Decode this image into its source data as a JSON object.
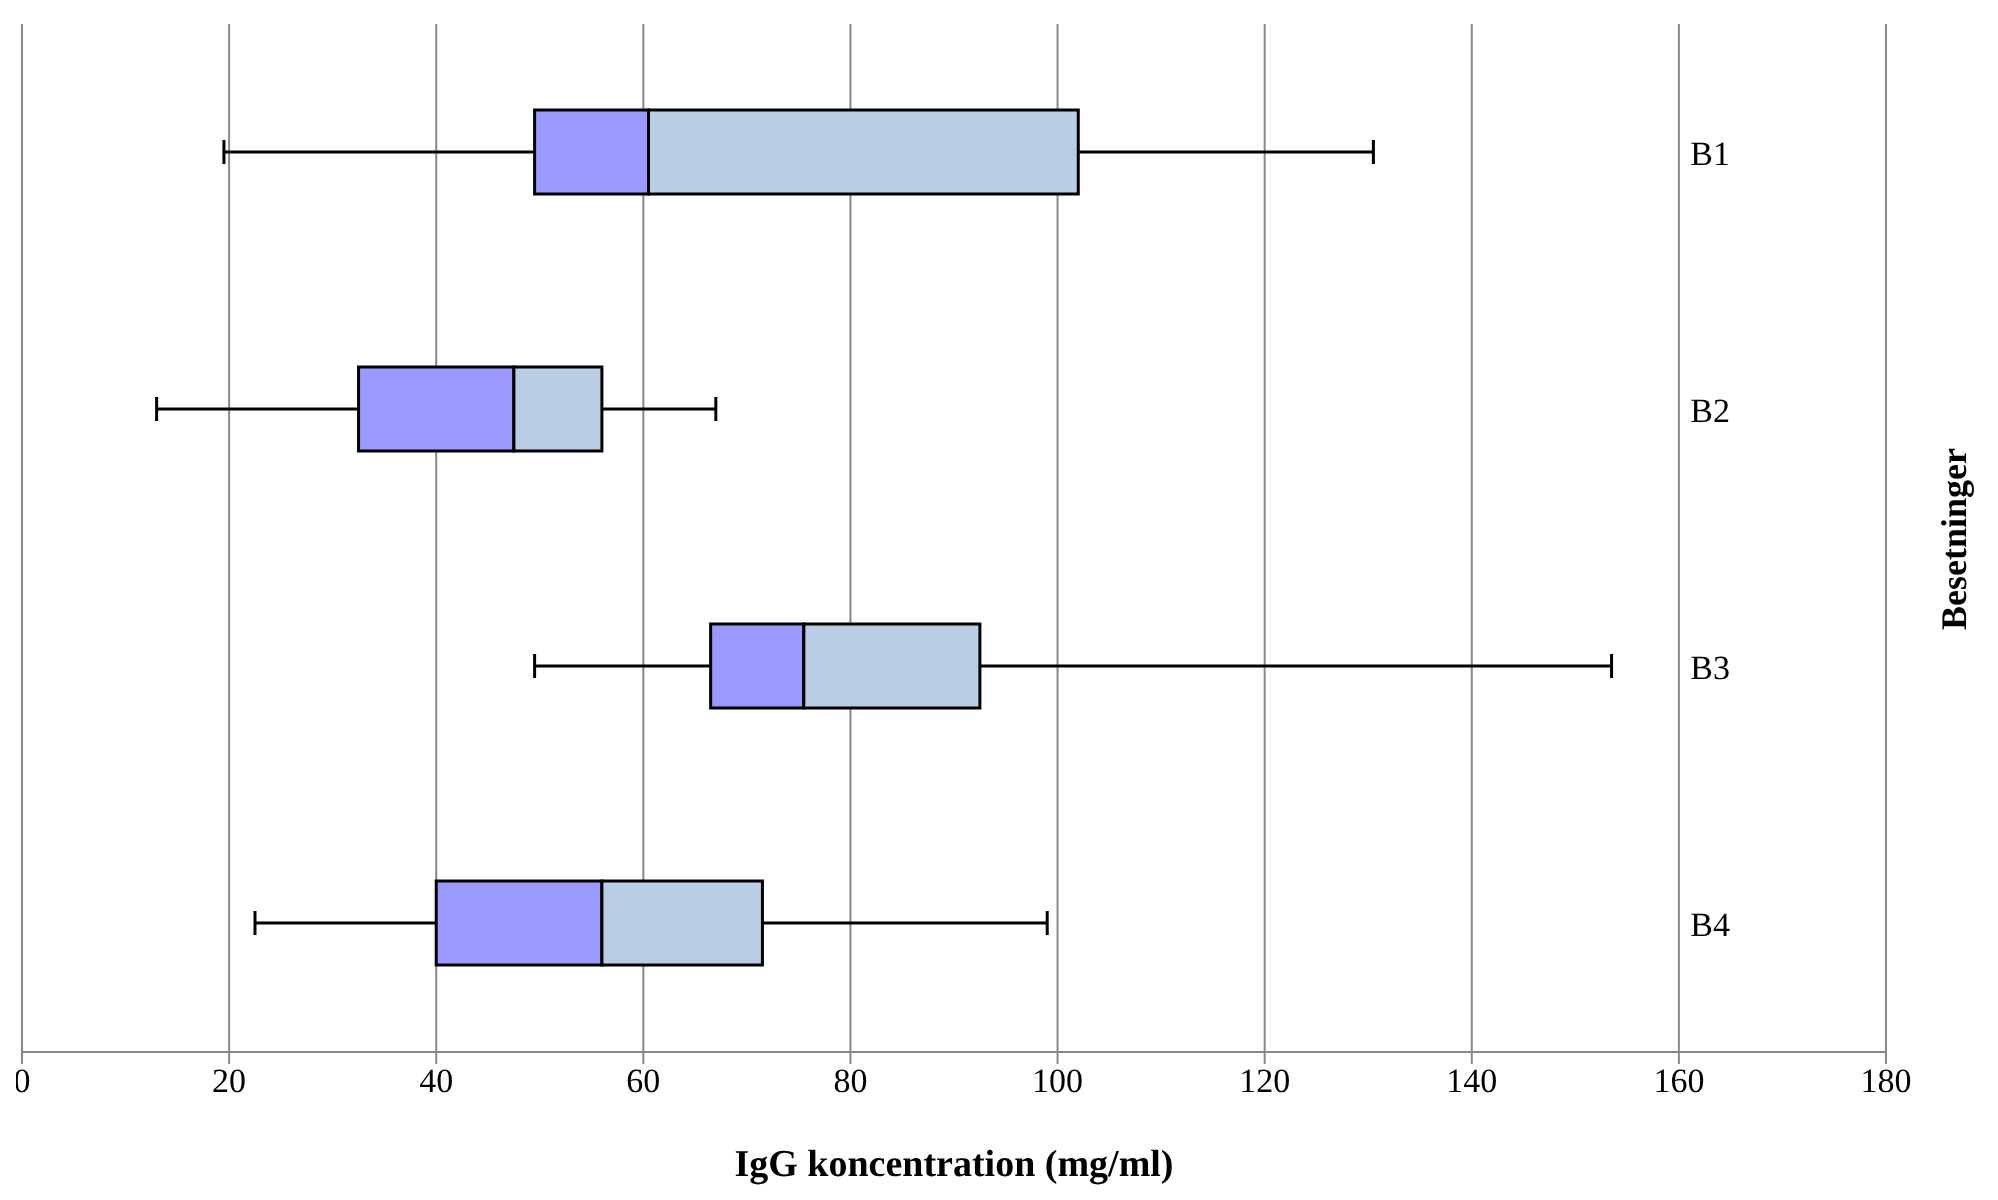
{
  "chart_data": {
    "type": "box",
    "orientation": "horizontal",
    "xlabel": "IgG koncentration (mg/ml)",
    "ylabel": "Besetninger",
    "categories": [
      "B1",
      "B2",
      "B3",
      "B4"
    ],
    "series": [
      {
        "color": "#b9cde5",
        "colors": [
          "#9999ff",
          "#9999ff",
          "#9999ff",
          "#9999ff"
        ],
        "boxes": [
          {
            "low": 19.5,
            "q1": 49.5,
            "median": 60.5,
            "q3": 102,
            "high": 130.5
          },
          {
            "low": 13,
            "q1": 32.5,
            "median": 47.5,
            "q3": 56,
            "high": 67
          },
          {
            "low": 49.5,
            "q1": 66.5,
            "median": 75.5,
            "q3": 92.5,
            "high": 153.5
          },
          {
            "low": 22.5,
            "q1": 40,
            "median": 56,
            "q3": 71.5,
            "high": 99
          }
        ]
      }
    ],
    "xlim": [
      0,
      180
    ],
    "xticks": [
      0,
      20,
      40,
      60,
      80,
      100,
      120,
      140,
      160,
      180
    ],
    "grid": "x"
  }
}
